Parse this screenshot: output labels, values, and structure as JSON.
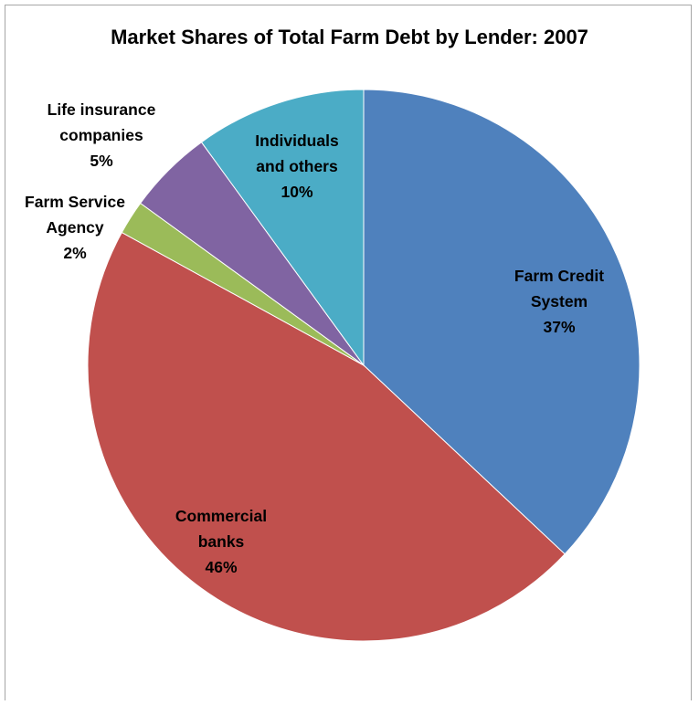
{
  "chart_data": {
    "type": "pie",
    "title": "Market Shares of Total Farm Debt by Lender: 2007",
    "start_angle_deg": 0,
    "direction": "clockwise",
    "slices": [
      {
        "name": "Farm Credit System",
        "label_lines": [
          "Farm Credit",
          "System"
        ],
        "value": 37,
        "value_label": "37%",
        "color": "#4f81bd"
      },
      {
        "name": "Commercial banks",
        "label_lines": [
          "Commercial",
          "banks"
        ],
        "value": 46,
        "value_label": "46%",
        "color": "#c0504d"
      },
      {
        "name": "Farm Service Agency",
        "label_lines": [
          "Farm Service",
          "Agency"
        ],
        "value": 2,
        "value_label": "2%",
        "color": "#9bbb59"
      },
      {
        "name": "Life insurance companies",
        "label_lines": [
          "Life insurance",
          "companies"
        ],
        "value": 5,
        "value_label": "5%",
        "color": "#8064a2"
      },
      {
        "name": "Individuals and others",
        "label_lines": [
          "Individuals",
          "and others"
        ],
        "value": 10,
        "value_label": "10%",
        "color": "#4bacc6"
      }
    ]
  }
}
